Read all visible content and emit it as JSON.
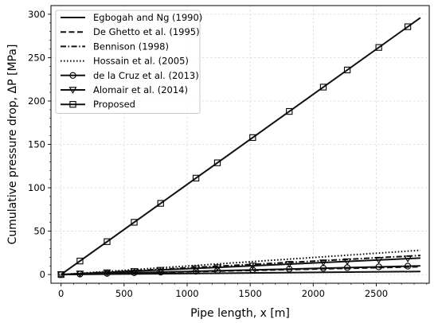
{
  "chart_data": {
    "type": "line",
    "title": "",
    "xlabel": "Pipe length, x [m]",
    "ylabel": "Cumulative pressure drop, ΔP [MPa]",
    "xlim": [
      -80,
      2920
    ],
    "ylim": [
      -10,
      310
    ],
    "xticks": [
      0,
      500,
      1000,
      1500,
      2000,
      2500
    ],
    "yticks": [
      0,
      50,
      100,
      150,
      200,
      250,
      300
    ],
    "grid": true,
    "legend_position": "top-left",
    "marker_x": [
      0,
      150,
      365,
      580,
      790,
      1070,
      1240,
      1520,
      1810,
      2080,
      2270,
      2520,
      2750
    ],
    "series": [
      {
        "name": "Egbogah and Ng (1990)",
        "style": "solid",
        "marker": "none",
        "x": [
          0,
          2850
        ],
        "y": [
          0,
          3.5
        ]
      },
      {
        "name": "De Ghetto et al. (1995)",
        "style": "dashed",
        "marker": "none",
        "x": [
          0,
          2850
        ],
        "y": [
          0,
          9
        ]
      },
      {
        "name": "Bennison (1998)",
        "style": "dashdot",
        "marker": "none",
        "x": [
          0,
          2850
        ],
        "y": [
          0,
          22
        ]
      },
      {
        "name": "Hossain et al. (2005)",
        "style": "dotted",
        "marker": "none",
        "x": [
          0,
          2850
        ],
        "y": [
          0,
          28
        ]
      },
      {
        "name": "de la Cruz et al. (2013)",
        "style": "solid",
        "marker": "circle",
        "x": [
          0,
          2850
        ],
        "y": [
          0,
          10
        ]
      },
      {
        "name": "Alomair et al. (2014)",
        "style": "solid",
        "marker": "triangle-down",
        "x": [
          0,
          2850
        ],
        "y": [
          0,
          19
        ]
      },
      {
        "name": "Proposed",
        "style": "solid",
        "marker": "square",
        "x": [
          0,
          2850
        ],
        "y": [
          0,
          296
        ]
      }
    ]
  }
}
